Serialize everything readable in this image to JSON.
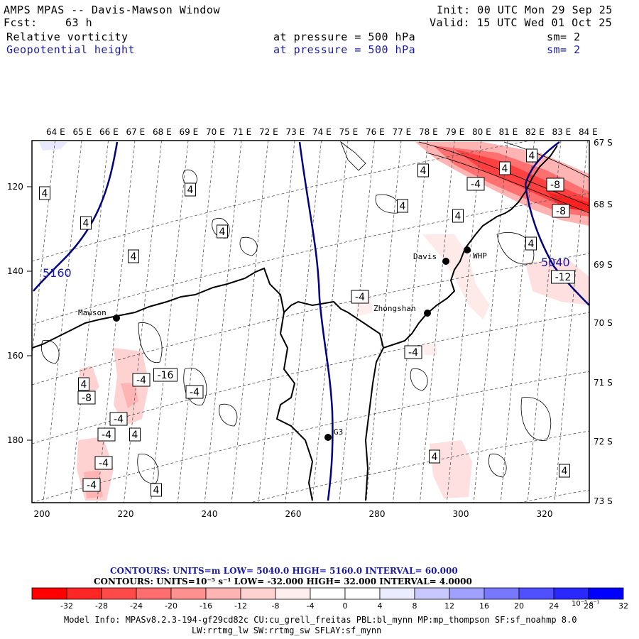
{
  "header": {
    "title": "AMPS MPAS -- Davis-Mawson Window",
    "init": "Init: 00 UTC Mon 29 Sep 25",
    "fcst_label": "Fcst:",
    "fcst_value": "63 h",
    "valid": "Valid: 15 UTC Wed 01 Oct 25",
    "field1_name": "Relative vorticity",
    "field1_level": "at pressure =  500 hPa",
    "field1_sm": "sm= 2",
    "field2_name": "Geopotential height",
    "field2_level": "at pressure =  500 hPa",
    "field2_sm": "sm= 2"
  },
  "map": {
    "lon_labels": [
      "64 E",
      "65 E",
      "66 E",
      "67 E",
      "68 E",
      "69 E",
      "70 E",
      "71 E",
      "72 E",
      "73 E",
      "74 E",
      "75 E",
      "76 E",
      "77 E",
      "78 E",
      "79 E",
      "80 E",
      "81 E",
      "82 E",
      "83 E",
      "84 E"
    ],
    "lat_labels": [
      "67 S",
      "68 S",
      "69 S",
      "70 S",
      "71 S",
      "72 S",
      "73 S"
    ],
    "y_ticks": [
      "120",
      "140",
      "160",
      "180"
    ],
    "x_ticks": [
      "200",
      "220",
      "240",
      "260",
      "280",
      "300",
      "320"
    ],
    "stations": [
      {
        "name": "Mawson"
      },
      {
        "name": "Davis"
      },
      {
        "name": "WHP"
      },
      {
        "name": "Zhongshan"
      },
      {
        "name": "G3"
      }
    ],
    "height_labels": [
      "5160",
      "5040"
    ],
    "vort_labels": [
      "4",
      "4",
      "4",
      "4",
      "4",
      "4",
      "4",
      "4",
      "-4",
      "4",
      "4",
      "4",
      "-4",
      "-8",
      "-8",
      "-12",
      "-16",
      "-4",
      "4",
      "-4",
      "4",
      "-4",
      "-4",
      "4",
      "4",
      "-4",
      "-8",
      "-4",
      "-4",
      "4"
    ]
  },
  "legend": {
    "contours_height": "CONTOURS:  UNITS=m  LOW=  5040.0      HIGH=  5160.0      INTERVAL=   60.000",
    "contours_vort": "CONTOURS:  UNITS=10⁻⁵ s⁻¹  LOW=  -32.000      HIGH=  32.000      INTERVAL=   4.0000",
    "colorbar_values": [
      "-32",
      "-28",
      "-24",
      "-20",
      "-16",
      "-12",
      "-8",
      "-4",
      "0",
      "4",
      "8",
      "12",
      "16",
      "20",
      "24",
      "28",
      "32"
    ],
    "colorbar_colors": [
      "#ff0000",
      "#ff2626",
      "#ff4a4a",
      "#ff6e6e",
      "#ff9090",
      "#ffb4b4",
      "#ffd2d2",
      "#ffeeee",
      "#ffffff",
      "#ffffff",
      "#ececff",
      "#c8c8ff",
      "#a0a0ff",
      "#7878ff",
      "#5050ff",
      "#2828ff",
      "#0000ff"
    ],
    "units": "10⁻⁵ s⁻¹"
  },
  "footer": {
    "model_info": "Model Info: MPASv8.2.3-194-gf29cd82c CU:cu_grell_freitas PBL:bl_mynn MP:mp_thompson SF:sf_noahmp 8.0",
    "model_info2": "LW:rrtmg_lw SW:rrtmg_sw SFLAY:sf_mynn"
  }
}
